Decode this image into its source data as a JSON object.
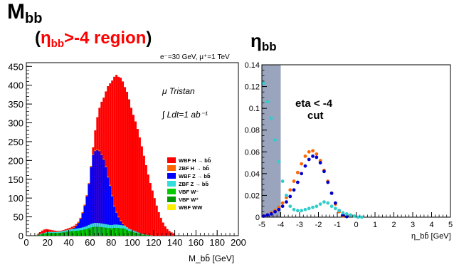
{
  "slide": {
    "left_title_main": "M",
    "left_title_sub": "bb",
    "left_subtitle_open": "(",
    "left_subtitle_eta": "η",
    "left_subtitle_eta_sub": "bb",
    "left_subtitle_rest": ">-4 region",
    "left_subtitle_close": ")",
    "right_title_main": "η",
    "right_title_sub": "bb"
  },
  "colors": {
    "WBF H→bb̄": "#ff0000",
    "ZBF H→bb̄": "#ff6600",
    "WBF Z→bb̄": "#0000ff",
    "ZBF Z→bb̄": "#33dddd",
    "VBF W-": "#00cc00",
    "VBF W+": "#009900",
    "WBF WW": "#ffee00",
    "eta_cut_band": "#9aa4bd",
    "overlay_text_red": "#ff0000"
  },
  "chart_data": [
    {
      "type": "area",
      "stacked": true,
      "title": "",
      "beam_label": "e⁻=30 GeV, μ⁺=1 TeV",
      "experiment_label": "μ Tristan",
      "lumi_label": "∫ Ldt=1 ab⁻¹",
      "xlabel": "M_bb̄ [GeV]",
      "ylabel": "",
      "xlim": [
        0,
        200
      ],
      "ylim": [
        0,
        460
      ],
      "xticks": [
        0,
        20,
        40,
        60,
        80,
        100,
        120,
        140,
        160,
        180,
        200
      ],
      "yticks": [
        0,
        50,
        100,
        150,
        200,
        250,
        300,
        350,
        400,
        450
      ],
      "legend_position": "right",
      "legend": [
        "WBF H → bb̄",
        "ZBF H → bb̄",
        "WBF Z → bb̄",
        "ZBF Z → bb̄",
        "VBF W⁻",
        "VBF W⁺",
        "WBF WW"
      ],
      "total_envelope": {
        "x": [
          10,
          14,
          18,
          22,
          26,
          30,
          34,
          38,
          42,
          46,
          50,
          54,
          58,
          60,
          62,
          64,
          66,
          68,
          70,
          72,
          74,
          76,
          78,
          80,
          82,
          84,
          86,
          88,
          90,
          92,
          94,
          96,
          98,
          100,
          104,
          108,
          112,
          116,
          120,
          124,
          128,
          132,
          136,
          140,
          150,
          160,
          170,
          180,
          190,
          200
        ],
        "y": [
          2,
          12,
          18,
          16,
          14,
          12,
          14,
          18,
          22,
          28,
          40,
          70,
          120,
          160,
          210,
          260,
          300,
          330,
          350,
          362,
          372,
          395,
          400,
          410,
          415,
          430,
          425,
          420,
          420,
          400,
          390,
          375,
          350,
          330,
          295,
          250,
          200,
          150,
          110,
          70,
          40,
          20,
          10,
          5,
          2,
          1,
          0,
          0,
          0,
          0
        ]
      },
      "wbf_z_envelope": {
        "x": [
          10,
          20,
          30,
          40,
          46,
          50,
          54,
          58,
          62,
          64,
          66,
          68,
          70,
          72,
          74,
          76,
          78,
          80,
          82,
          84,
          88,
          92,
          96,
          100,
          104,
          108,
          112,
          120
        ],
        "y": [
          2,
          10,
          10,
          16,
          25,
          40,
          80,
          140,
          210,
          225,
          230,
          230,
          225,
          210,
          200,
          170,
          145,
          125,
          90,
          70,
          45,
          30,
          20,
          15,
          10,
          5,
          3,
          0
        ]
      },
      "low_components_envelope": {
        "x": [
          10,
          14,
          18,
          22,
          30,
          40,
          50,
          56,
          60,
          64,
          68,
          72,
          76,
          80,
          84,
          90,
          96,
          100,
          110,
          120,
          130,
          140,
          160
        ],
        "y": [
          0,
          10,
          14,
          12,
          12,
          16,
          20,
          24,
          30,
          34,
          34,
          32,
          30,
          28,
          30,
          28,
          25,
          22,
          15,
          10,
          6,
          3,
          0
        ]
      }
    },
    {
      "type": "scatter",
      "title": "",
      "annotation_line1": "eta < -4",
      "annotation_line2": "cut",
      "xlabel": "η_bb̄ [GeV]",
      "ylabel": "",
      "xlim": [
        -5,
        5
      ],
      "ylim": [
        0,
        0.14
      ],
      "xticks": [
        -5,
        -4,
        -3,
        -2,
        -1,
        0,
        1,
        2,
        3,
        4,
        5
      ],
      "yticks": [
        0,
        0.02,
        0.04,
        0.06,
        0.08,
        0.1,
        0.12,
        0.14
      ],
      "cut_band": [
        -5,
        -4
      ],
      "series": [
        {
          "color": "#ff6600",
          "x": [
            -4.9,
            -4.7,
            -4.5,
            -4.3,
            -4.1,
            -3.9,
            -3.7,
            -3.5,
            -3.3,
            -3.1,
            -2.9,
            -2.7,
            -2.5,
            -2.3,
            -2.1,
            -1.9,
            -1.7,
            -1.5,
            -1.3,
            -1.1,
            -0.9,
            -0.7
          ],
          "y": [
            0.001,
            0.002,
            0.004,
            0.006,
            0.009,
            0.013,
            0.018,
            0.025,
            0.033,
            0.041,
            0.049,
            0.056,
            0.06,
            0.061,
            0.058,
            0.052,
            0.043,
            0.033,
            0.022,
            0.012,
            0.005,
            0.001
          ]
        },
        {
          "color": "#0000cc",
          "x": [
            -4.9,
            -4.7,
            -4.5,
            -4.3,
            -4.1,
            -3.9,
            -3.7,
            -3.5,
            -3.3,
            -3.1,
            -2.9,
            -2.7,
            -2.5,
            -2.3,
            -2.1,
            -1.9,
            -1.7,
            -1.5,
            -1.3,
            -1.1,
            -0.9,
            -0.7,
            -0.5
          ],
          "y": [
            0.001,
            0.002,
            0.003,
            0.005,
            0.007,
            0.01,
            0.014,
            0.019,
            0.025,
            0.032,
            0.04,
            0.047,
            0.053,
            0.056,
            0.055,
            0.05,
            0.042,
            0.032,
            0.022,
            0.013,
            0.006,
            0.002,
            0.0005
          ]
        },
        {
          "color": "#33cccc",
          "x": [
            -4.9,
            -4.7,
            -4.5,
            -4.3,
            -4.1,
            -3.9,
            -3.7,
            -3.5,
            -3.3,
            -3.1,
            -2.9,
            -2.7,
            -2.5,
            -2.3,
            -2.1,
            -1.9,
            -1.7,
            -1.5,
            -1.3,
            -1.1,
            -0.9,
            -0.7,
            -0.5,
            -0.3,
            -0.1,
            0.1,
            0.3
          ],
          "y": [
            0.123,
            0.106,
            0.091,
            0.071,
            0.051,
            0.033,
            0.02,
            0.01,
            0.007,
            0.006,
            0.006,
            0.007,
            0.008,
            0.009,
            0.01,
            0.012,
            0.014,
            0.013,
            0.01,
            0.008,
            0.006,
            0.004,
            0.003,
            0.002,
            0.001,
            0.0,
            0.0
          ]
        }
      ]
    }
  ]
}
